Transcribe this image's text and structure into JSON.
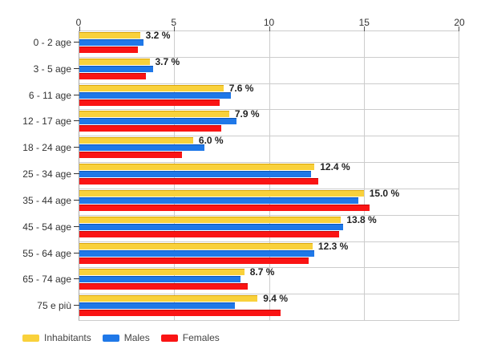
{
  "colors": {
    "background": "#FFFFFF",
    "grid": "#CCCCCC",
    "axis": "#AAAAAA",
    "text": "#333333",
    "value_label": "#222222"
  },
  "chart_data": {
    "type": "bar",
    "orientation": "horizontal",
    "title": "",
    "xlabel": "",
    "ylabel": "",
    "xlim": [
      0,
      20
    ],
    "x_ticks": [
      0,
      5,
      10,
      15,
      20
    ],
    "grid": true,
    "legend_position": "bottom-left",
    "categories": [
      "0 - 2 age",
      "3 - 5 age",
      "6 - 11 age",
      "12 - 17 age",
      "18 - 24 age",
      "25 - 34 age",
      "35 - 44 age",
      "45 - 54 age",
      "55 - 64 age",
      "65 - 74 age",
      "75 e più"
    ],
    "series": [
      {
        "name": "Inhabitants",
        "color": "#F9D13B",
        "edge": "#D9A50A",
        "values": [
          3.2,
          3.7,
          7.6,
          7.9,
          6.0,
          12.4,
          15.0,
          13.8,
          12.3,
          8.7,
          9.4
        ]
      },
      {
        "name": "Males",
        "color": "#1F78E8",
        "edge": "#0D55B8",
        "values": [
          3.4,
          3.9,
          8.0,
          8.3,
          6.6,
          12.2,
          14.7,
          13.9,
          12.4,
          8.5,
          8.2
        ]
      },
      {
        "name": "Females",
        "color": "#FA1414",
        "edge": "#C40000",
        "values": [
          3.1,
          3.5,
          7.4,
          7.5,
          5.4,
          12.6,
          15.3,
          13.7,
          12.1,
          8.9,
          10.6
        ]
      }
    ],
    "value_labels": [
      "3.2 %",
      "3.7 %",
      "7.6 %",
      "7.9 %",
      "6.0 %",
      "12.4 %",
      "15.0 %",
      "13.8 %",
      "12.3 %",
      "8.7 %",
      "9.4 %"
    ]
  }
}
